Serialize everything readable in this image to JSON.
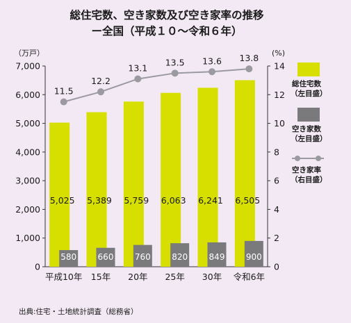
{
  "chart_data": {
    "type": "bar",
    "title": "総住宅数、空き家数及び空き家率の推移",
    "subtitle": "ー全国（平成１０～令和６年）",
    "categories": [
      "平成10年",
      "15年",
      "20年",
      "25年",
      "30年",
      "令和6年"
    ],
    "y_left_unit": "（万戸）",
    "y_right_unit": "(%)",
    "y_left_ticks": [
      "0",
      "1,000",
      "2,000",
      "3,000",
      "4,000",
      "5,000",
      "6,000",
      "7,000"
    ],
    "y_right_ticks": [
      "0",
      "2",
      "4",
      "6",
      "8",
      "10",
      "12",
      "14"
    ],
    "ylim_left": [
      0,
      7000
    ],
    "ylim_right": [
      0,
      14
    ],
    "series": [
      {
        "name": "総住宅数（左目盛）",
        "kind": "bar",
        "axis": "left",
        "color": "#d6df00",
        "values": [
          5025,
          5389,
          5759,
          6063,
          6241,
          6505
        ],
        "labels": [
          "5,025",
          "5,389",
          "5,759",
          "6,063",
          "6,241",
          "6,505"
        ]
      },
      {
        "name": "空き家数（左目盛）",
        "kind": "bar",
        "axis": "left",
        "color": "#7a7a7d",
        "values": [
          580,
          660,
          760,
          820,
          849,
          900
        ],
        "labels": [
          "580",
          "660",
          "760",
          "820",
          "849",
          "900"
        ]
      },
      {
        "name": "空き家率（右目盛）",
        "kind": "line",
        "axis": "right",
        "color": "#9a9aa0",
        "values": [
          11.5,
          12.2,
          13.1,
          13.5,
          13.6,
          13.8
        ],
        "labels": [
          "11.5",
          "12.2",
          "13.1",
          "13.5",
          "13.6",
          "13.8"
        ]
      }
    ],
    "legend": {
      "placement": "right",
      "items": [
        {
          "line1": "総住宅数",
          "line2": "（左目盛）"
        },
        {
          "line1": "空き家数",
          "line2": "（左目盛）"
        },
        {
          "line1": "空き家率",
          "line2": "（右目盛）"
        }
      ]
    },
    "source": "出典:住宅・土地統計調査（総務省）",
    "grid": false
  }
}
